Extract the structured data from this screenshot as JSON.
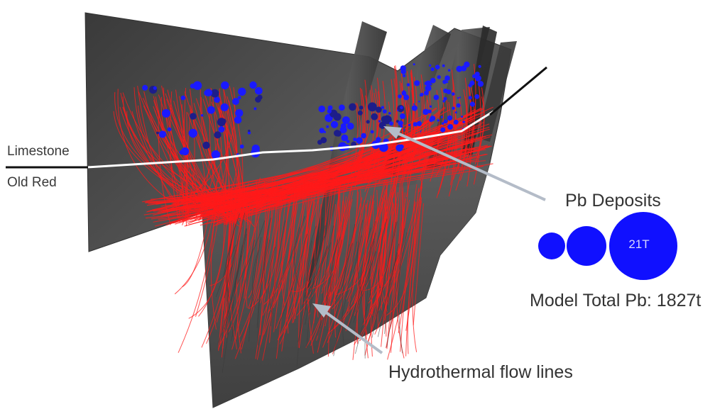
{
  "labels": {
    "limestone": "Limestone",
    "old_red": "Old Red",
    "pb_deposits": "Pb Deposits",
    "legend_large_value": "21T",
    "model_total": "Model Total Pb: 1827t",
    "flow_lines": "Hydrothermal flow lines"
  },
  "colors": {
    "fault_surface": "#4a4a4a",
    "flow_lines": "#ff1a1a",
    "pb_deposit": "#1a1aff",
    "horizon_line": "#ffffff",
    "pointer": "#b4bcc8"
  },
  "legend": {
    "sizes": [
      "small",
      "medium",
      "large"
    ]
  }
}
